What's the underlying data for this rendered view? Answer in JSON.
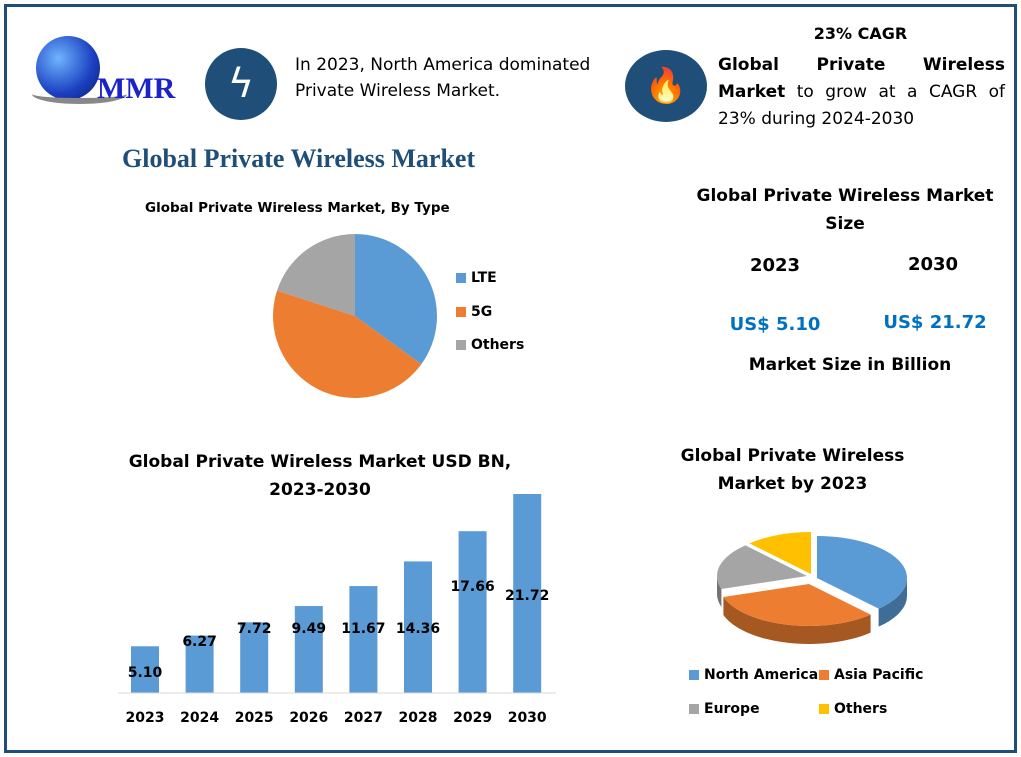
{
  "logo": {
    "text": "MMR"
  },
  "header": {
    "fact1": "In 2023, North America dominated Private Wireless Market.",
    "cagr_title": "23% CAGR",
    "fact2_bold": "Global Private Wireless Market",
    "fact2_rest": " to grow at a CAGR of 23% during 2024-2030"
  },
  "main_title": "Global Private Wireless Market",
  "market_size": {
    "title": "Global Private Wireless Market Size",
    "years": [
      "2023",
      "2030"
    ],
    "values": [
      "US$ 5.10",
      "US$ 21.72"
    ],
    "unit_label": "Market Size in Billion",
    "value_color": "#0070c0"
  },
  "chart_data": [
    {
      "type": "pie",
      "title": "Global Private Wireless Market, By Type",
      "categories": [
        "LTE",
        "5G",
        "Others"
      ],
      "values": [
        35,
        45,
        20
      ],
      "colors": [
        "#5b9bd5",
        "#ed7d31",
        "#a5a5a5"
      ],
      "legend": "right"
    },
    {
      "type": "bar",
      "title": "Global Private Wireless Market USD BN, 2023-2030",
      "categories": [
        "2023",
        "2024",
        "2025",
        "2026",
        "2027",
        "2028",
        "2029",
        "2030"
      ],
      "values": [
        5.1,
        6.27,
        7.72,
        9.49,
        11.67,
        14.36,
        17.66,
        21.72
      ],
      "value_labels": [
        "5.10",
        "6.27",
        "7.72",
        "9.49",
        "11.67",
        "14.36",
        "17.66",
        "21.72"
      ],
      "color": "#5b9bd5",
      "ylim": [
        0,
        22
      ],
      "grid": false
    },
    {
      "type": "pie",
      "title": "Global Private Wireless Market by 2023",
      "categories": [
        "North America",
        "Asia Pacific",
        "Europe",
        "Others"
      ],
      "values": [
        38,
        32,
        18,
        12
      ],
      "colors": [
        "#5b9bd5",
        "#ed7d31",
        "#a5a5a5",
        "#ffc000"
      ],
      "legend": "bottom",
      "style": "3d"
    }
  ]
}
